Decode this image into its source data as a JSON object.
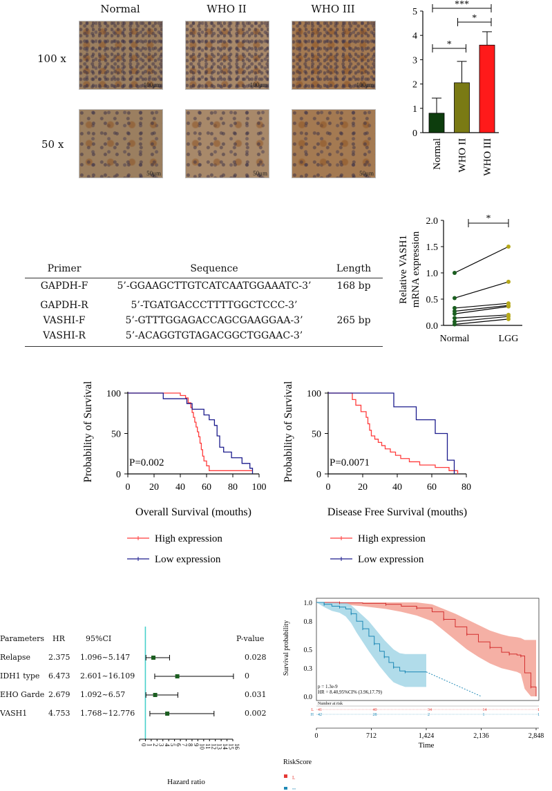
{
  "panelA": {
    "columns": [
      "Normal",
      "WHO II",
      "WHO III"
    ],
    "rows": [
      {
        "label": "100 x",
        "scale": "100μm"
      },
      {
        "label": "50 x",
        "scale": "50μm"
      }
    ],
    "tissue_colors": [
      "#9b7f60",
      "#a8896a",
      "#a47a52"
    ]
  },
  "chart_ihc": {
    "type": "bar",
    "categories": [
      "Normal",
      "WHO II",
      "WHO III"
    ],
    "values": [
      0.8,
      2.05,
      3.6
    ],
    "errors": [
      0.62,
      0.88,
      0.55
    ],
    "colors": [
      "#0d3d0d",
      "#7a7a14",
      "#ff1a1a"
    ],
    "ylim": [
      0,
      5
    ],
    "yticks": [
      0,
      1,
      2,
      3,
      4,
      5
    ],
    "significance": [
      {
        "from": 0,
        "to": 2,
        "label": "***"
      },
      {
        "from": 1,
        "to": 2,
        "label": "*"
      },
      {
        "from": 0,
        "to": 1,
        "label": "*"
      }
    ]
  },
  "primer_table": {
    "headers": [
      "Primer",
      "Sequence",
      "Length"
    ],
    "rows": [
      {
        "primer": "GAPDH-F",
        "sequence": "5’-GGAAGCTTGTCATCAATGGAAATC-3’",
        "length": "168 bp"
      },
      {
        "primer": "GAPDH-R",
        "sequence": "5’-TGATGACCCTTTTGGCTCCC-3’",
        "length": ""
      },
      {
        "primer": "VASHI-F",
        "sequence": "5’-GTTTGGAGACCAGCGAAGGAA-3’",
        "length": "265 bp"
      },
      {
        "primer": "VASHI-R",
        "sequence": "5’-ACAGGTGTAGACGGCTGGAAC-3’",
        "length": ""
      }
    ]
  },
  "chart_mrna": {
    "type": "line",
    "categories": [
      "Normal",
      "LGG"
    ],
    "ylabel": "Relative VASH1 mRNA expression",
    "ylabel_lines": [
      "Relative VASH1",
      "mRNA expression"
    ],
    "ylim": [
      0,
      2.0
    ],
    "yticks": [
      "0.0",
      "0.5",
      "1.0",
      "1.5",
      "2.0"
    ],
    "significance": "*",
    "pairs": [
      [
        1.0,
        1.5
      ],
      [
        0.52,
        0.83
      ],
      [
        0.33,
        0.42
      ],
      [
        0.27,
        0.38
      ],
      [
        0.22,
        0.36
      ],
      [
        0.14,
        0.2
      ],
      [
        0.07,
        0.17
      ],
      [
        0.02,
        0.12
      ]
    ],
    "normal_color": "#1b5e20",
    "lgg_color": "#b5a81a"
  },
  "chart_os": {
    "type": "line",
    "ylabel": "Probability of Survival",
    "xlabel": "Overall Survival (mouths)",
    "pvalue": "P=0.002",
    "xlim": [
      0,
      100
    ],
    "xticks": [
      0,
      20,
      40,
      60,
      80,
      100
    ],
    "ylim": [
      0,
      100
    ],
    "yticks": [
      0,
      50,
      100
    ],
    "series": [
      {
        "name": "High expression",
        "color": "#ff3b3b",
        "x": [
          0,
          30,
          40,
          44,
          46,
          48,
          49,
          50,
          51,
          52,
          53,
          54,
          55,
          56,
          57,
          58,
          60,
          62,
          95
        ],
        "y": [
          100,
          100,
          97,
          94,
          88,
          82,
          76,
          70,
          64,
          58,
          52,
          46,
          38,
          30,
          22,
          16,
          10,
          4,
          4
        ]
      },
      {
        "name": "Low expression",
        "color": "#1a1a8c",
        "x": [
          0,
          27,
          42,
          45,
          49,
          55,
          58,
          62,
          66,
          68,
          70,
          73,
          79,
          87,
          93,
          95
        ],
        "y": [
          100,
          93,
          93,
          87,
          80,
          80,
          73,
          67,
          60,
          47,
          33,
          27,
          20,
          13,
          7,
          0
        ]
      }
    ]
  },
  "chart_dfs": {
    "type": "line",
    "ylabel": "Probability of Survival",
    "xlabel": "Disease Free Survival (mouths)",
    "pvalue": "P=0.0071",
    "xlim": [
      0,
      80
    ],
    "xticks": [
      0,
      20,
      40,
      60,
      80
    ],
    "ylim": [
      0,
      100
    ],
    "yticks": [
      0,
      50,
      100
    ],
    "series": [
      {
        "name": "High expression",
        "color": "#ff3b3b",
        "x": [
          0,
          12,
          14,
          16,
          19,
          22,
          23,
          24,
          25,
          27,
          29,
          31,
          33,
          36,
          39,
          42,
          47,
          53,
          62,
          70,
          75
        ],
        "y": [
          100,
          100,
          92,
          85,
          77,
          70,
          62,
          54,
          47,
          43,
          39,
          35,
          31,
          27,
          23,
          19,
          15,
          11,
          8,
          4,
          0
        ]
      },
      {
        "name": "Low expression",
        "color": "#1a1a8c",
        "x": [
          0,
          30,
          38,
          51,
          62,
          69,
          73
        ],
        "y": [
          100,
          100,
          83,
          67,
          50,
          17,
          0
        ]
      }
    ]
  },
  "legend": {
    "high": "High expression",
    "low": "Low expression",
    "high_color": "#ff3b3b",
    "low_color": "#1a1a8c"
  },
  "forest": {
    "type": "scatter",
    "headers": {
      "param": "Parameters",
      "hr": "HR",
      "ci": "95%CI",
      "p": "P-value"
    },
    "rows": [
      {
        "param": "Relapse",
        "hr": "2.375",
        "ci": "1.096~5.147",
        "p": "0.028",
        "hr_val": 2.375,
        "lo": 1.096,
        "hi": 5.147
      },
      {
        "param": "IDH1 type",
        "hr": "6.473",
        "ci": "2.601~16.109",
        "p": "0",
        "hr_val": 6.473,
        "lo": 2.601,
        "hi": 16.109
      },
      {
        "param": "EHO Garde",
        "hr": "2.679",
        "ci": "1.092~6.57",
        "p": "0.031",
        "hr_val": 2.679,
        "lo": 1.092,
        "hi": 6.57
      },
      {
        "param": "VASH1",
        "hr": "4.753",
        "ci": "1.768~12.776",
        "p": "0.002",
        "hr_val": 4.753,
        "lo": 1.768,
        "hi": 12.776
      }
    ],
    "xlim": [
      0,
      16
    ],
    "xticks": [
      0,
      1,
      2,
      3,
      4,
      5,
      6,
      7,
      8,
      9,
      10,
      11,
      12,
      13,
      14,
      15,
      16
    ],
    "xlabel": "Hazard ratio",
    "marker_color": "#1b5e20",
    "refline_color": "#48d1cc"
  },
  "chart_km": {
    "type": "line",
    "ylabel": "Survival probability",
    "xlabel": "Time",
    "xlim": [
      0,
      2848
    ],
    "xticks": [
      "0",
      "712",
      "1,424",
      "2,136",
      "2,848"
    ],
    "ylim": [
      0,
      1.0
    ],
    "yticks": [
      "0.0",
      "0.3",
      "0.5",
      "0.8",
      "1.0"
    ],
    "stat_p": "p = 1.3e-9",
    "stat_hr": "HR = 8.40,95%CI% (3.96,17.79)",
    "risk_title": "Number at risk",
    "risk_rows": [
      {
        "label": "L",
        "color": "#e53935",
        "values": [
          "41",
          "40",
          "34",
          "14",
          "1"
        ]
      },
      {
        "label": "H",
        "color": "#1e88b5",
        "values": [
          "42",
          "28",
          "2",
          "1",
          "1"
        ]
      }
    ],
    "legend_title": "RiskScore",
    "series": [
      {
        "name": "L",
        "color": "#d32f2f",
        "band": "#f4a79b",
        "x": [
          0,
          300,
          600,
          900,
          1100,
          1300,
          1500,
          1650,
          1800,
          1950,
          2100,
          2250,
          2400,
          2500,
          2600,
          2650,
          2700,
          2780,
          2848
        ],
        "y": [
          1.0,
          0.995,
          0.99,
          0.98,
          0.96,
          0.94,
          0.9,
          0.82,
          0.74,
          0.66,
          0.58,
          0.52,
          0.47,
          0.45,
          0.44,
          0.43,
          0.25,
          0.1,
          0.0
        ],
        "lo": [
          1.0,
          0.98,
          0.96,
          0.93,
          0.9,
          0.86,
          0.8,
          0.7,
          0.6,
          0.5,
          0.42,
          0.35,
          0.3,
          0.28,
          0.26,
          0.24,
          0.08,
          0.0,
          0.0
        ],
        "hi": [
          1.0,
          1.0,
          1.0,
          1.0,
          1.0,
          1.0,
          0.98,
          0.93,
          0.88,
          0.82,
          0.76,
          0.7,
          0.66,
          0.64,
          0.63,
          0.62,
          0.6,
          0.6,
          0.6
        ]
      },
      {
        "name": "H",
        "color": "#1e88b5",
        "band": "#a9d8e8",
        "x": [
          0,
          100,
          200,
          300,
          380,
          450,
          520,
          600,
          680,
          750,
          820,
          880,
          940,
          1000,
          1080,
          1150,
          1424
        ],
        "y": [
          1.0,
          0.98,
          0.96,
          0.95,
          0.93,
          0.88,
          0.8,
          0.72,
          0.64,
          0.56,
          0.48,
          0.42,
          0.36,
          0.31,
          0.27,
          0.26,
          0.26
        ],
        "lo": [
          1.0,
          0.95,
          0.91,
          0.89,
          0.85,
          0.78,
          0.68,
          0.58,
          0.48,
          0.4,
          0.32,
          0.26,
          0.2,
          0.15,
          0.12,
          0.1,
          0.1
        ],
        "hi": [
          1.0,
          1.0,
          1.0,
          1.0,
          1.0,
          0.97,
          0.92,
          0.86,
          0.8,
          0.73,
          0.66,
          0.6,
          0.55,
          0.5,
          0.46,
          0.45,
          0.45
        ],
        "dash_to": [
          2136,
          0.0
        ]
      }
    ]
  }
}
